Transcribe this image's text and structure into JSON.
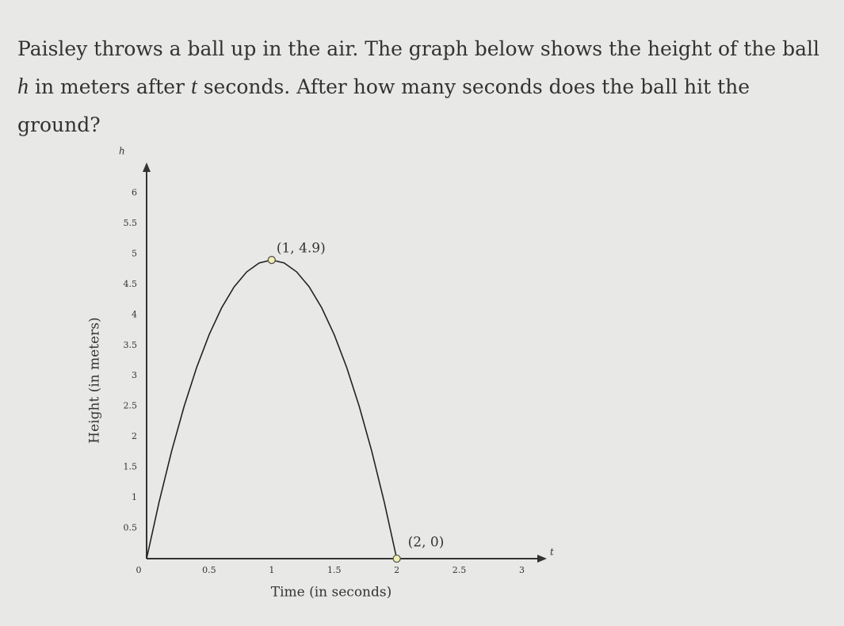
{
  "question": [
    "Paisley throws a ball up in the air. The graph below shows the height of the ball ",
    "h",
    " in meters after ",
    "t",
    " seconds. After how many seconds does the ball hit the ground?"
  ],
  "chart_data": {
    "type": "line",
    "x_label": "Time (in seconds)",
    "y_label": "Height (in meters)",
    "x_axis_name": "t",
    "y_axis_name": "h",
    "x": [
      0,
      0.1,
      0.2,
      0.3,
      0.4,
      0.5,
      0.6,
      0.7,
      0.8,
      0.9,
      1,
      1.1,
      1.2,
      1.3,
      1.4,
      1.5,
      1.6,
      1.7,
      1.8,
      1.9,
      2
    ],
    "series": [
      {
        "color": "#222222",
        "values": [
          0,
          0.931,
          1.764,
          2.499,
          3.136,
          3.675,
          4.116,
          4.459,
          4.704,
          4.851,
          4.9,
          4.851,
          4.704,
          4.459,
          4.116,
          3.675,
          3.136,
          2.499,
          1.764,
          0.931,
          0
        ]
      }
    ],
    "points": [
      {
        "label": "(1, 4.9)",
        "x": 1,
        "y": 4.9,
        "color": "#f2eeb0"
      },
      {
        "label": "(2, 0)",
        "x": 2,
        "y": 0,
        "color": "#f2eeb0"
      }
    ],
    "xlim": [
      0,
      3.2
    ],
    "ylim": [
      0,
      6.5
    ],
    "xticks": [
      0,
      0.5,
      1,
      1.5,
      2,
      2.5,
      3
    ],
    "yticks": [
      0.5,
      1,
      1.5,
      2,
      2.5,
      3,
      3.5,
      4,
      4.5,
      5,
      5.5,
      6
    ],
    "grid": false
  }
}
